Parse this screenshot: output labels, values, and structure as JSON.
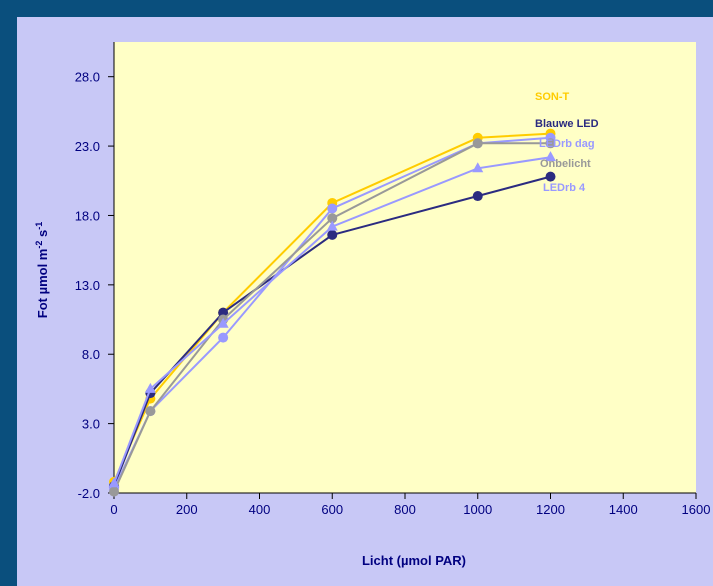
{
  "colors": {
    "background": "#0a4f7d",
    "panel": "#c8c8f6",
    "plot_area": "#ffffc6",
    "axis_text": "#000080"
  },
  "chart_data": {
    "type": "line",
    "title": "",
    "xlabel": "Licht (µmol PAR)",
    "ylabel_parts": {
      "main": "Fot µmol m",
      "sup1": "-2",
      "mid": " s",
      "sup2": "-1"
    },
    "xlim": [
      0,
      1600
    ],
    "ylim": [
      -2.0,
      30.5
    ],
    "x_ticks": [
      0,
      200,
      400,
      600,
      800,
      1000,
      1200,
      1400,
      1600
    ],
    "x_tick_labels": [
      "0",
      "200",
      "400",
      "600",
      "800",
      "1000",
      "1200",
      "1400",
      "1600"
    ],
    "y_ticks": [
      -2.0,
      3.0,
      8.0,
      13.0,
      18.0,
      23.0,
      28.0
    ],
    "y_tick_labels": [
      "-2.0",
      "3.0",
      "8.0",
      "13.0",
      "18.0",
      "23.0",
      "28.0"
    ],
    "grid": false,
    "legend_placement": "right, next to line ends",
    "x": [
      0,
      100,
      300,
      600,
      1000,
      1200
    ],
    "series": [
      {
        "name": "SON-T",
        "color": "#ffcc00",
        "marker": "circle",
        "values": [
          -1.2,
          4.8,
          11.0,
          18.9,
          23.6,
          23.9
        ]
      },
      {
        "name": "Blauwe LED",
        "color": "#2b2b80",
        "marker": "circle",
        "values": [
          -1.5,
          5.2,
          11.0,
          16.6,
          19.4,
          20.8
        ]
      },
      {
        "name": "LEDrb dag",
        "color": "#9999ff",
        "marker": "circle",
        "values": [
          -1.7,
          3.9,
          9.2,
          18.5,
          23.2,
          23.6
        ]
      },
      {
        "name": "Onbelicht",
        "color": "#999999",
        "marker": "circle",
        "values": [
          -1.9,
          3.9,
          10.5,
          17.8,
          23.2,
          23.2
        ]
      },
      {
        "name": "LEDrb 4",
        "color": "#9999ff",
        "marker": "triangle",
        "values": [
          -1.3,
          5.5,
          10.2,
          17.2,
          21.4,
          22.2
        ]
      }
    ]
  }
}
